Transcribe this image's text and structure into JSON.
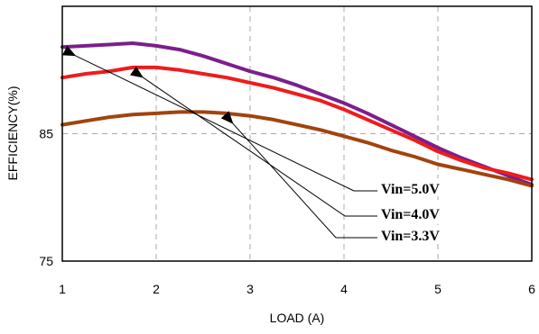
{
  "chart_data": {
    "type": "line",
    "title": "",
    "xlabel": "LOAD (A)",
    "ylabel": "EFFICIENCY(%)",
    "xlim": [
      1,
      6
    ],
    "ylim": [
      75,
      95
    ],
    "x_ticks": [
      "1",
      "2",
      "3",
      "4",
      "5",
      "6"
    ],
    "y_ticks": [
      "75",
      "85"
    ],
    "grid": "dashed",
    "legend": "none",
    "series": [
      {
        "name": "Vin=5.0V",
        "color": "#7B1F8C",
        "x": [
          1.0,
          1.25,
          1.5,
          1.75,
          2.0,
          2.25,
          2.5,
          2.75,
          3.0,
          3.25,
          3.5,
          3.75,
          4.0,
          4.25,
          4.5,
          4.75,
          5.0,
          5.25,
          5.5,
          5.75,
          6.0
        ],
        "y": [
          91.8,
          91.9,
          92.0,
          92.1,
          91.9,
          91.6,
          91.1,
          90.5,
          89.9,
          89.4,
          88.8,
          88.1,
          87.4,
          86.6,
          85.7,
          84.8,
          83.9,
          83.1,
          82.4,
          81.7,
          81.0
        ]
      },
      {
        "name": "Vin=4.0V",
        "color": "#EE1C1C",
        "x": [
          1.0,
          1.25,
          1.5,
          1.75,
          2.0,
          2.25,
          2.5,
          2.75,
          3.0,
          3.25,
          3.5,
          3.75,
          4.0,
          4.25,
          4.5,
          4.75,
          5.0,
          5.25,
          5.5,
          5.75,
          6.0
        ],
        "y": [
          89.4,
          89.7,
          89.9,
          90.2,
          90.2,
          90.0,
          89.7,
          89.4,
          89.0,
          88.6,
          88.1,
          87.6,
          86.9,
          86.1,
          85.3,
          84.5,
          83.6,
          82.9,
          82.3,
          81.9,
          81.4
        ]
      },
      {
        "name": "Vin=3.3V",
        "color": "#A0440E",
        "x": [
          1.0,
          1.25,
          1.5,
          1.75,
          2.0,
          2.25,
          2.5,
          2.75,
          3.0,
          3.25,
          3.5,
          3.75,
          4.0,
          4.25,
          4.5,
          4.75,
          5.0,
          5.25,
          5.5,
          5.75,
          6.0
        ],
        "y": [
          85.7,
          86.0,
          86.3,
          86.5,
          86.6,
          86.7,
          86.7,
          86.6,
          86.4,
          86.1,
          85.7,
          85.3,
          84.8,
          84.3,
          83.7,
          83.2,
          82.6,
          82.2,
          81.8,
          81.4,
          80.9
        ]
      }
    ],
    "annotations": [
      {
        "text": "Vin=5.0V",
        "target_x": 1.1,
        "target_y": 91.8
      },
      {
        "text": "Vin=4.0V",
        "target_x": 1.82,
        "target_y": 90.1
      },
      {
        "text": "Vin=3.3V",
        "target_x": 2.78,
        "target_y": 86.5
      }
    ]
  }
}
